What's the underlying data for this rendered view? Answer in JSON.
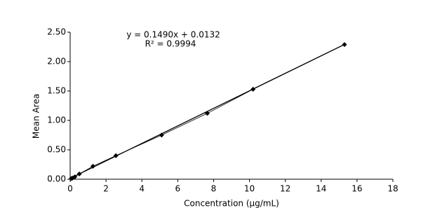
{
  "chart_data": {
    "type": "scatter",
    "x_label": "Concentration (µg/mL)",
    "y_label": "Mean Area",
    "series": [
      {
        "name": "Mean Area",
        "color": "#000000",
        "x": [
          0.06,
          0.13,
          0.26,
          0.51,
          1.27,
          2.55,
          5.1,
          7.65,
          10.2,
          15.3
        ],
        "values": [
          0.01,
          0.02,
          0.04,
          0.09,
          0.22,
          0.4,
          0.75,
          1.12,
          1.53,
          2.29
        ]
      }
    ],
    "trendline": {
      "slope": 0.149,
      "intercept": 0.0132,
      "equation": "y = 0.1490x + 0.0132",
      "r_squared": "R² = 0.9994"
    },
    "xlim": [
      0,
      18
    ],
    "xticks": [
      0,
      2,
      4,
      6,
      8,
      10,
      12,
      14,
      16,
      18
    ],
    "ylim": [
      0,
      2.5
    ],
    "yticks": [
      {
        "value": 0,
        "label": "0.00"
      },
      {
        "value": 0.5,
        "label": "0.50"
      },
      {
        "value": 1,
        "label": "1.00"
      },
      {
        "value": 1.5,
        "label": "1.50"
      },
      {
        "value": 2,
        "label": "2.00"
      },
      {
        "value": 2.5,
        "label": "2.50"
      }
    ],
    "grid": false
  }
}
